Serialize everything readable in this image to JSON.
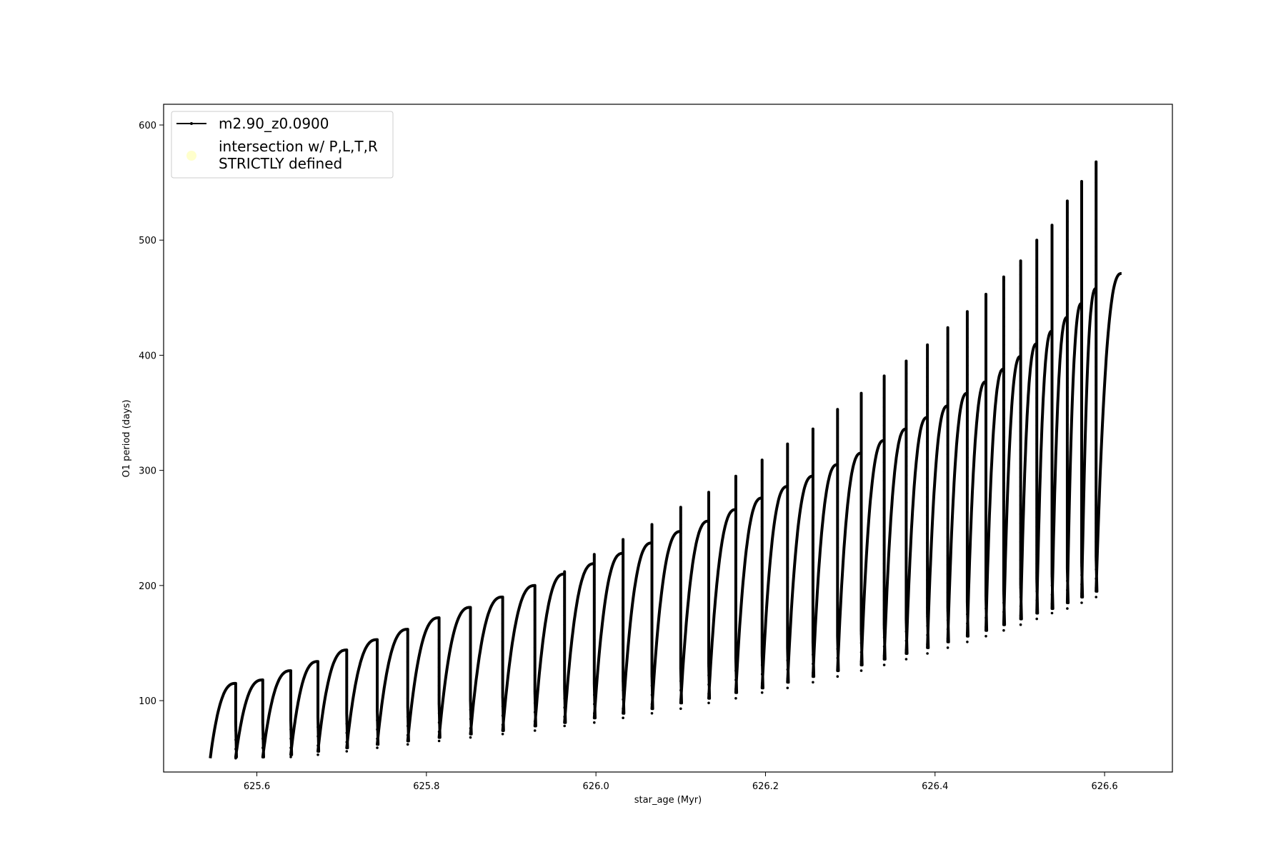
{
  "chart_data": {
    "type": "line",
    "title": "",
    "xlabel": "star_age (Myr)",
    "ylabel": "O1 period (days)",
    "xlim": [
      625.49,
      626.68
    ],
    "ylim": [
      38,
      618
    ],
    "x_ticks": [
      625.6,
      625.8,
      626.0,
      626.2,
      626.4,
      626.6
    ],
    "x_tick_labels": [
      "625.6",
      "625.8",
      "626.0",
      "626.2",
      "626.4",
      "626.6"
    ],
    "y_ticks": [
      100,
      200,
      300,
      400,
      500,
      600
    ],
    "y_tick_labels": [
      "100",
      "200",
      "300",
      "400",
      "500",
      "600"
    ],
    "grid": false,
    "legend_position": "upper-left",
    "legend": [
      {
        "label": "m2.90_z0.0900",
        "marker": "line-with-dots",
        "color": "#000000"
      },
      {
        "label_lines": [
          "intersection w/ P,L,T,R",
          "STRICTLY defined"
        ],
        "marker": "circle",
        "color": "#ffffcc"
      }
    ],
    "series": [
      {
        "name": "m2.90_z0.0900",
        "color": "#000000",
        "description_of_cycles": "sawtooth: each cycle rises from trough to peak, then drops sharply with an upward spike",
        "cycles": [
          {
            "start": 625.545,
            "end": 625.575,
            "trough": 50,
            "peak": 115,
            "spike": 95
          },
          {
            "start": 625.575,
            "end": 625.607,
            "trough": 51,
            "peak": 118,
            "spike": 118
          },
          {
            "start": 625.607,
            "end": 625.64,
            "trough": 51,
            "peak": 126,
            "spike": 126
          },
          {
            "start": 625.64,
            "end": 625.672,
            "trough": 53,
            "peak": 134,
            "spike": 134
          },
          {
            "start": 625.672,
            "end": 625.706,
            "trough": 56,
            "peak": 144,
            "spike": 144
          },
          {
            "start": 625.706,
            "end": 625.742,
            "trough": 59,
            "peak": 153,
            "spike": 153
          },
          {
            "start": 625.742,
            "end": 625.778,
            "trough": 62,
            "peak": 162,
            "spike": 162
          },
          {
            "start": 625.778,
            "end": 625.815,
            "trough": 65,
            "peak": 172,
            "spike": 172
          },
          {
            "start": 625.815,
            "end": 625.852,
            "trough": 68,
            "peak": 181,
            "spike": 181
          },
          {
            "start": 625.852,
            "end": 625.89,
            "trough": 71,
            "peak": 190,
            "spike": 190
          },
          {
            "start": 625.89,
            "end": 625.928,
            "trough": 74,
            "peak": 200,
            "spike": 200
          },
          {
            "start": 625.928,
            "end": 625.963,
            "trough": 78,
            "peak": 210,
            "spike": 212
          },
          {
            "start": 625.963,
            "end": 625.998,
            "trough": 81,
            "peak": 219,
            "spike": 227
          },
          {
            "start": 625.998,
            "end": 626.032,
            "trough": 85,
            "peak": 228,
            "spike": 240
          },
          {
            "start": 626.032,
            "end": 626.066,
            "trough": 89,
            "peak": 237,
            "spike": 253
          },
          {
            "start": 626.066,
            "end": 626.1,
            "trough": 93,
            "peak": 247,
            "spike": 268
          },
          {
            "start": 626.1,
            "end": 626.133,
            "trough": 98,
            "peak": 256,
            "spike": 281
          },
          {
            "start": 626.133,
            "end": 626.165,
            "trough": 102,
            "peak": 266,
            "spike": 295
          },
          {
            "start": 626.165,
            "end": 626.196,
            "trough": 107,
            "peak": 276,
            "spike": 309
          },
          {
            "start": 626.196,
            "end": 626.226,
            "trough": 111,
            "peak": 286,
            "spike": 323
          },
          {
            "start": 626.226,
            "end": 626.256,
            "trough": 116,
            "peak": 295,
            "spike": 336
          },
          {
            "start": 626.256,
            "end": 626.285,
            "trough": 121,
            "peak": 305,
            "spike": 353
          },
          {
            "start": 626.285,
            "end": 626.313,
            "trough": 126,
            "peak": 315,
            "spike": 367
          },
          {
            "start": 626.313,
            "end": 626.34,
            "trough": 131,
            "peak": 326,
            "spike": 382
          },
          {
            "start": 626.34,
            "end": 626.366,
            "trough": 136,
            "peak": 336,
            "spike": 395
          },
          {
            "start": 626.366,
            "end": 626.391,
            "trough": 141,
            "peak": 346,
            "spike": 409
          },
          {
            "start": 626.391,
            "end": 626.415,
            "trough": 146,
            "peak": 356,
            "spike": 424
          },
          {
            "start": 626.415,
            "end": 626.438,
            "trough": 151,
            "peak": 367,
            "spike": 438
          },
          {
            "start": 626.438,
            "end": 626.46,
            "trough": 156,
            "peak": 377,
            "spike": 453
          },
          {
            "start": 626.46,
            "end": 626.481,
            "trough": 161,
            "peak": 388,
            "spike": 468
          },
          {
            "start": 626.481,
            "end": 626.501,
            "trough": 166,
            "peak": 399,
            "spike": 482
          },
          {
            "start": 626.501,
            "end": 626.52,
            "trough": 171,
            "peak": 410,
            "spike": 500
          },
          {
            "start": 626.52,
            "end": 626.538,
            "trough": 176,
            "peak": 421,
            "spike": 513
          },
          {
            "start": 626.538,
            "end": 626.556,
            "trough": 180,
            "peak": 433,
            "spike": 534
          },
          {
            "start": 626.556,
            "end": 626.573,
            "trough": 185,
            "peak": 445,
            "spike": 551
          },
          {
            "start": 626.573,
            "end": 626.59,
            "trough": 190,
            "peak": 458,
            "spike": 568
          },
          {
            "start": 626.59,
            "end": 626.62,
            "trough": 195,
            "peak": 471,
            "spike": 471
          }
        ]
      }
    ]
  }
}
